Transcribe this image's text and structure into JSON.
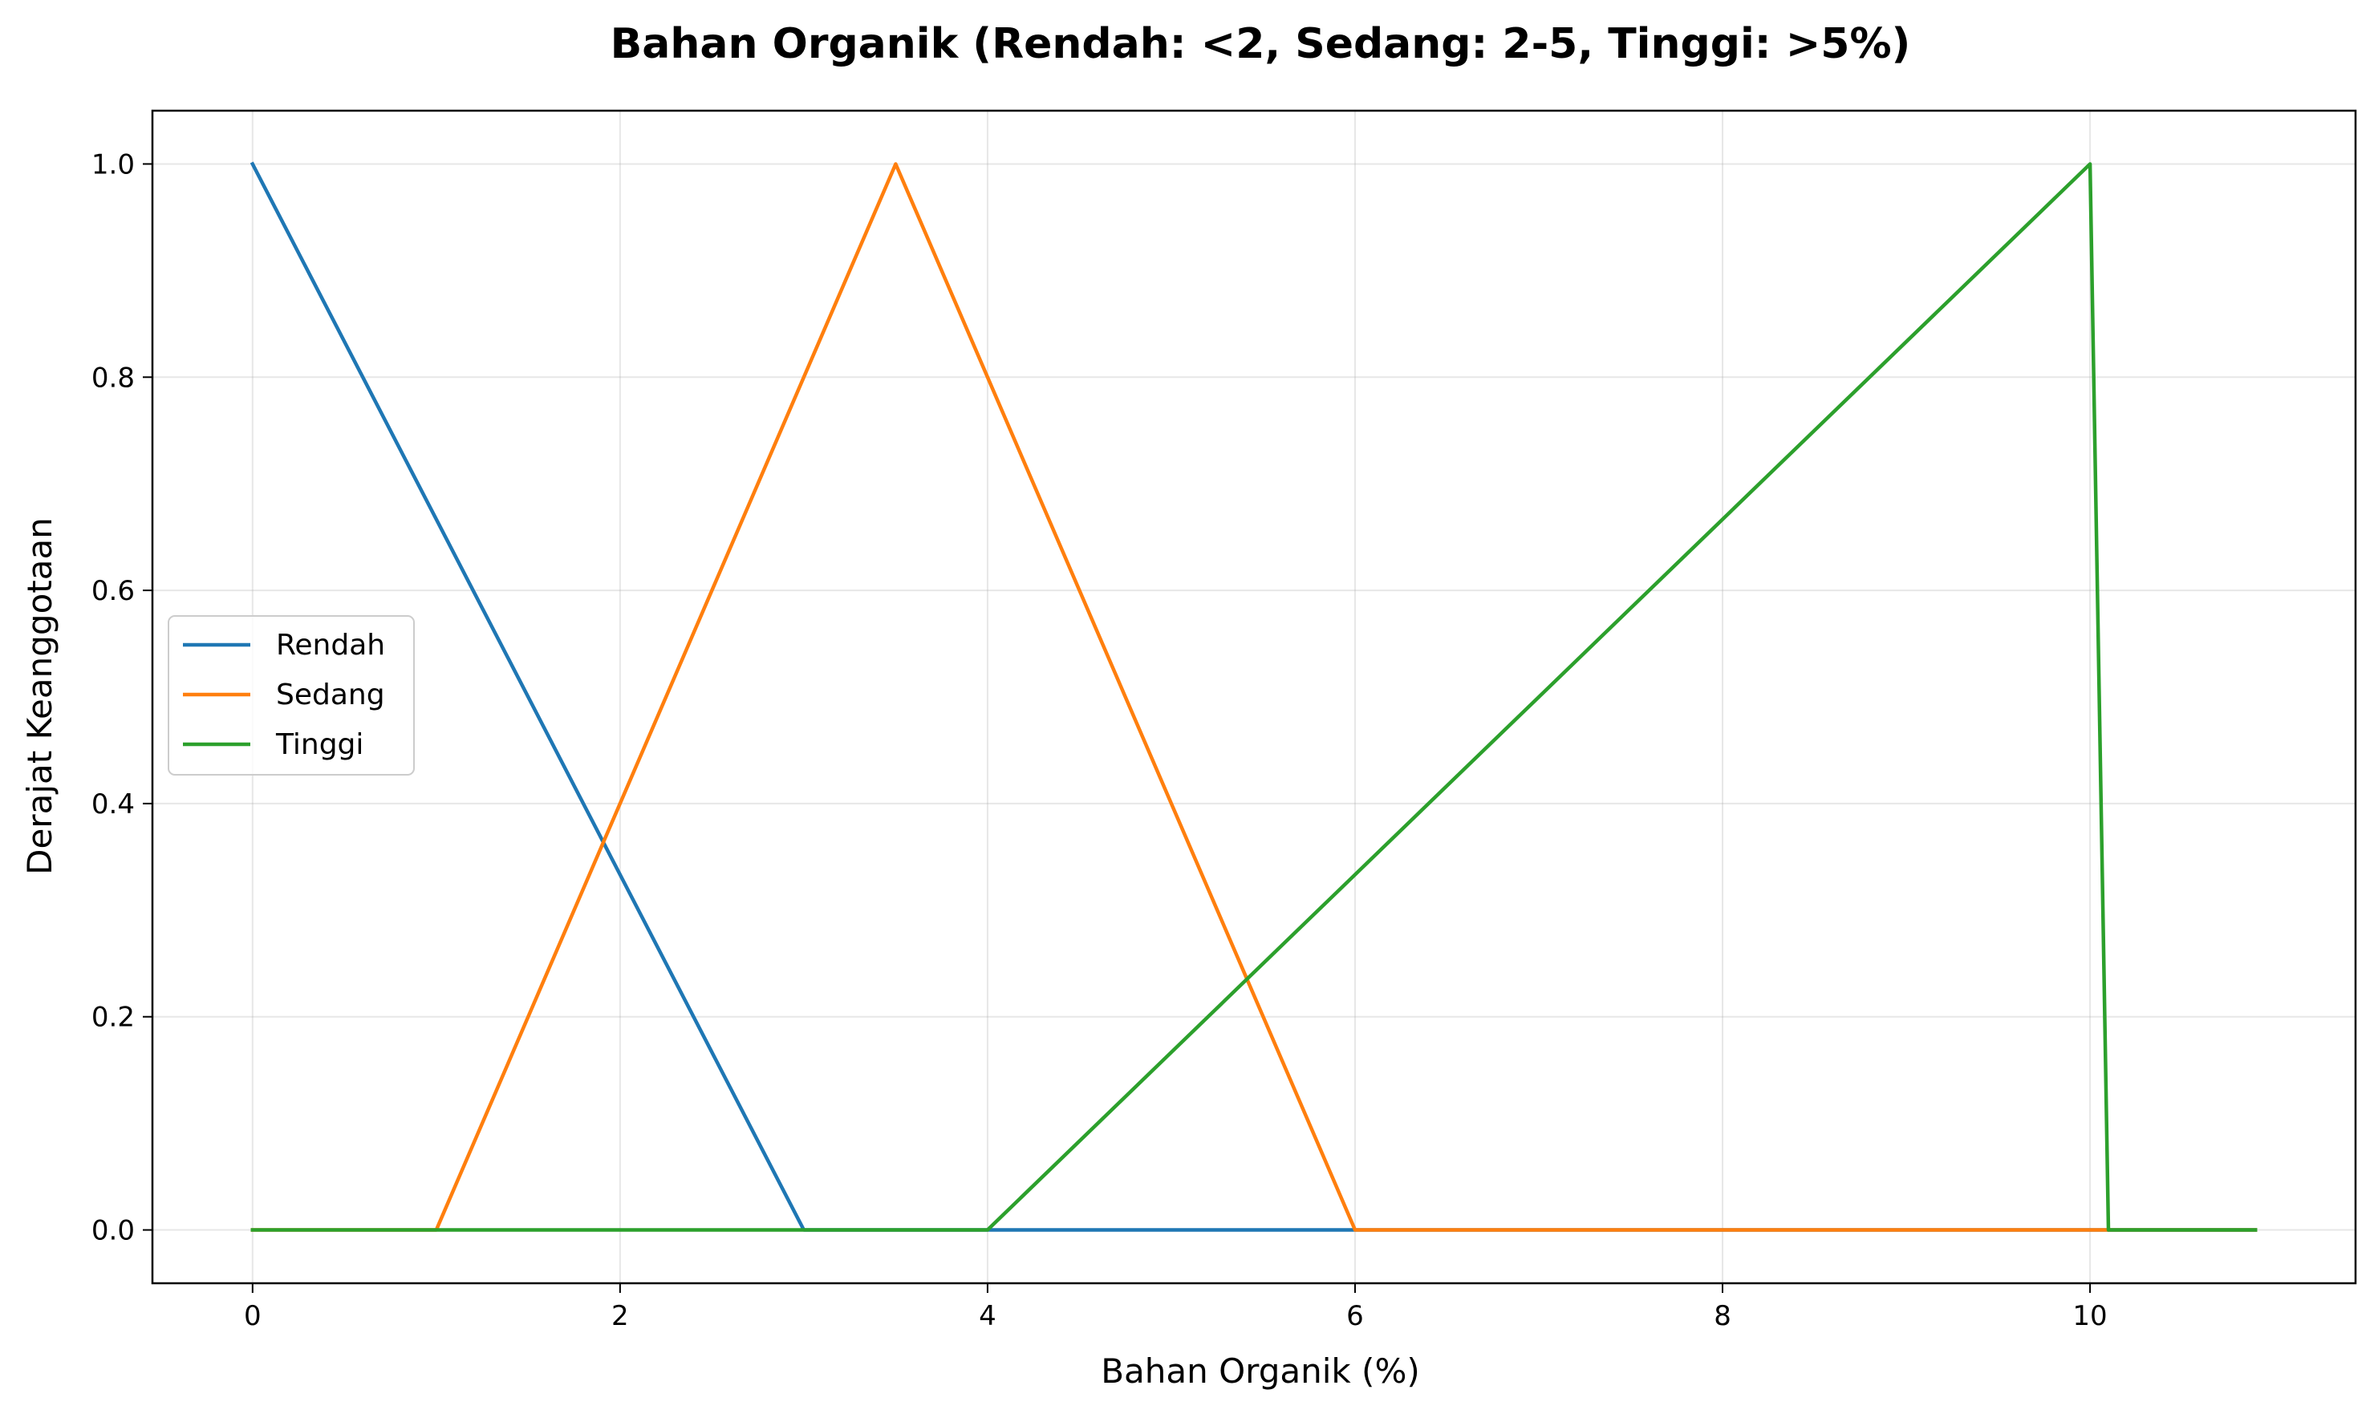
{
  "chart_data": {
    "type": "line",
    "title": "Bahan Organik (Rendah: <2, Sedang: 2-5, Tinggi: >5%)",
    "xlabel": "Bahan Organik (%)",
    "ylabel": "Derajat Keanggotaan",
    "xlim": [
      -0.545,
      11.445
    ],
    "ylim": [
      -0.05,
      1.05
    ],
    "xticks": [
      0,
      2,
      4,
      6,
      8,
      10
    ],
    "xtick_labels": [
      "0",
      "2",
      "4",
      "6",
      "8",
      "10"
    ],
    "yticks": [
      0.0,
      0.2,
      0.4,
      0.6,
      0.8,
      1.0
    ],
    "ytick_labels": [
      "0.0",
      "0.2",
      "0.4",
      "0.6",
      "0.8",
      "1.0"
    ],
    "grid": true,
    "legend_position": "center-left",
    "series": [
      {
        "name": "Rendah",
        "color": "#1f77b4",
        "x": [
          0,
          3,
          10.9
        ],
        "y": [
          1.0,
          0.0,
          0.0
        ]
      },
      {
        "name": "Sedang",
        "color": "#ff7f0e",
        "x": [
          0,
          1,
          3.5,
          6,
          10.9
        ],
        "y": [
          0.0,
          0.0,
          1.0,
          0.0,
          0.0
        ]
      },
      {
        "name": "Tinggi",
        "color": "#2ca02c",
        "x": [
          0,
          4,
          10,
          10.1,
          10.9
        ],
        "y": [
          0.0,
          0.0,
          1.0,
          0.0,
          0.0
        ]
      }
    ]
  }
}
